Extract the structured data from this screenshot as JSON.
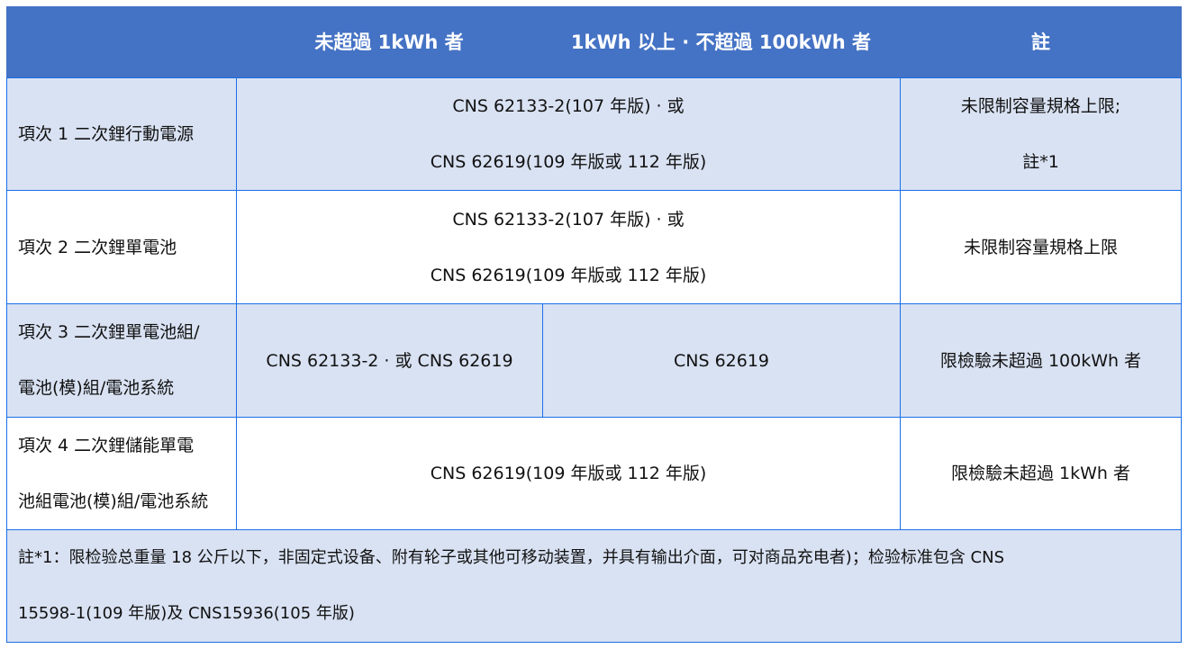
{
  "header": {
    "col1": "",
    "col2": "未超過 1kWh 者",
    "col3": "1kWh 以上 · 不超過 100kWh 者",
    "col4": "註"
  },
  "rows": [
    {
      "item": "項次 1  二次鋰行動電源",
      "standard_lines": [
        "CNS 62133-2(107 年版) · 或",
        "CNS 62619(109 年版或 112 年版)"
      ],
      "note_lines": [
        "未限制容量規格上限;",
        "註*1"
      ]
    },
    {
      "item": "項次 2  二次鋰單電池",
      "standard_lines": [
        "CNS 62133-2(107 年版) · 或",
        "CNS 62619(109 年版或 112 年版)"
      ],
      "note": "未限制容量規格上限"
    },
    {
      "item_lines": [
        "項次  3  二次鋰單電池組/",
        "電池(模)組/電池系統"
      ],
      "standard_small": "CNS 62133-2 · 或  CNS 62619",
      "standard_large": "CNS 62619",
      "note": "限檢驗未超過 100kWh 者"
    },
    {
      "item_lines": [
        "項次  4  二次鋰儲能單電",
        "池組電池(模)組/電池系統"
      ],
      "standard": "CNS 62619(109 年版或 112 年版)",
      "note": "限檢驗未超過 1kWh 者"
    }
  ],
  "footnote_lines": [
    "註*1：限检验总重量  18  公斤以下，非固定式设备、附有轮子或其他可移动装置，并具有输出介面，可对商品充电者)；检验标准包含  CNS",
    "15598-1(109  年版)及 CNS15936(105  年版)"
  ],
  "colors": {
    "header": "#4472C4",
    "band": "#D9E2F3",
    "border": "#1A6FE8"
  }
}
